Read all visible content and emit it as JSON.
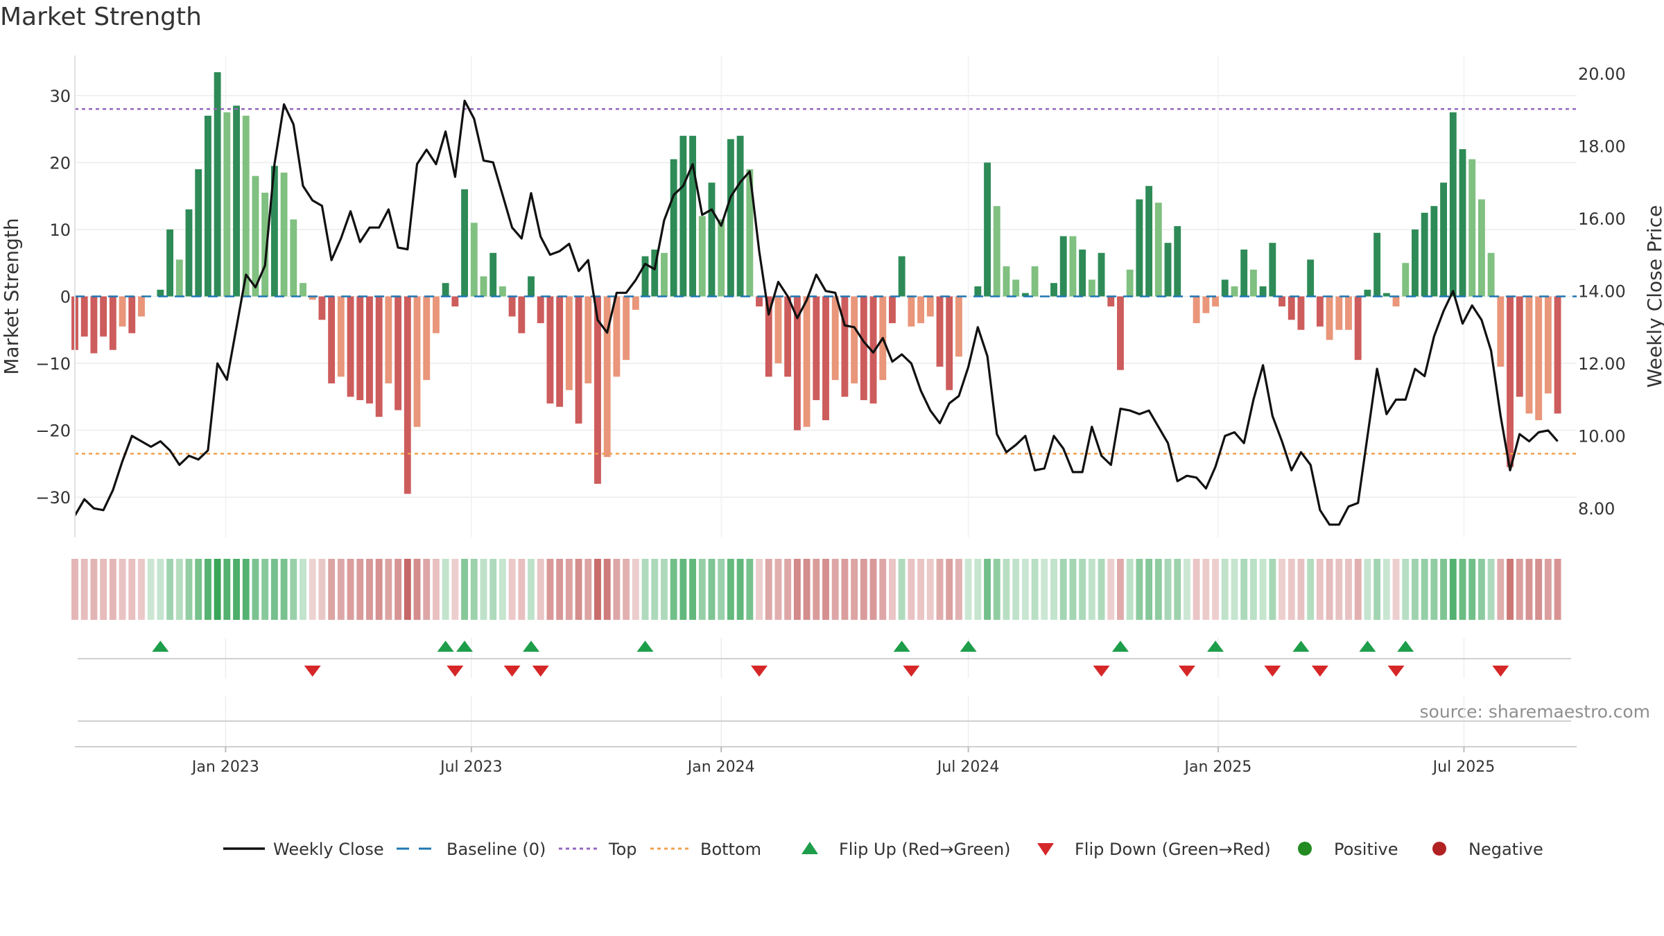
{
  "title": "Market Strength",
  "source": "source: sharemaestro.com",
  "colors": {
    "strong_green": "#2e8b57",
    "light_green": "#80c080",
    "strong_red": "#cd5c5c",
    "light_red": "#e9967a",
    "price_line": "#111111",
    "baseline": "#1f77b4",
    "top_line": "#9467bd",
    "bottom_line": "#f0a050",
    "flip_up": "#1e9e4a",
    "flip_down": "#d62728",
    "positive_dot": "#228b22",
    "negative_dot": "#b22222"
  },
  "chart_data": {
    "type": "bar+line",
    "title": "Market Strength",
    "ylabel": "Market Strength",
    "y2label": "Weekly Close Price",
    "ylim": [
      -36,
      36
    ],
    "y2lim": [
      7.2,
      20.5
    ],
    "yticks": [
      30,
      20,
      10,
      0,
      -10,
      -20,
      -30
    ],
    "ytick_labels": [
      "30",
      "20",
      "10",
      "0",
      "−10",
      "−20",
      "−30"
    ],
    "y2ticks": [
      20,
      18,
      16,
      14,
      12,
      10,
      8
    ],
    "y2tick_labels": [
      "20.00",
      "18.00",
      "16.00",
      "14.00",
      "12.00",
      "10.00",
      "8.00"
    ],
    "xlim": [
      "2022-09-12",
      "2025-09-22"
    ],
    "xticks": [
      "2023-01-01",
      "2023-07-01",
      "2024-01-01",
      "2024-07-01",
      "2025-01-01",
      "2025-07-01"
    ],
    "xtick_labels": [
      "Jan 2023",
      "Jul 2023",
      "Jan 2024",
      "Jul 2024",
      "Jan 2025",
      "Jul 2025"
    ],
    "start_date": "2022-09-12",
    "week_step_days": 7,
    "strength": [
      -8,
      -6,
      -8.5,
      -6,
      -8,
      -4.5,
      -5.5,
      -3,
      0,
      1,
      10,
      5.5,
      13,
      19,
      27,
      33.5,
      27.5,
      28.5,
      27,
      18,
      15.5,
      19.5,
      18.5,
      11.5,
      2,
      -0.5,
      -3.5,
      -13,
      -12,
      -15,
      -15.5,
      -16,
      -18,
      -13,
      -17,
      -29.5,
      -19.5,
      -12.5,
      -5.5,
      2,
      -1.5,
      16,
      11,
      3,
      6.5,
      1.5,
      -3,
      -5.5,
      3,
      -4,
      -16,
      -16.5,
      -14,
      -19,
      -13,
      -28,
      -24,
      -12,
      -9.5,
      -2,
      6,
      7,
      6.5,
      20.5,
      24,
      24,
      12,
      17,
      11.5,
      23.5,
      24,
      19,
      -1.5,
      -12,
      -10,
      -12,
      -20,
      -19.5,
      -15.5,
      -18.5,
      -12.5,
      -15,
      -13,
      -15.5,
      -16,
      -12.5,
      -4,
      6,
      -4.5,
      -4,
      -3,
      -10.5,
      -14,
      -9,
      0,
      1.5,
      20,
      13.5,
      4.5,
      2.5,
      0.5,
      4.5,
      0,
      2,
      9,
      9,
      7,
      2.5,
      6.5,
      -1.5,
      -11,
      4,
      14.5,
      16.5,
      14,
      8,
      10.5,
      0,
      -4,
      -2.5,
      -1.5,
      2.5,
      1.5,
      7,
      4,
      1.5,
      8,
      -1.5,
      -3.5,
      -5,
      5.5,
      -4.5,
      -6.5,
      -5,
      -5,
      -9.5,
      1,
      9.5,
      0.5,
      -1.5,
      5,
      10,
      12.5,
      13.5,
      17,
      27.5,
      22,
      20.5,
      14.5,
      6.5,
      -10.5,
      -25.5,
      -15,
      -17.5,
      -18.5,
      -14.5,
      -17.5
    ],
    "shade": [
      1,
      1,
      1,
      1,
      1,
      0,
      1,
      0,
      0,
      1,
      1,
      0,
      1,
      1,
      1,
      1,
      0,
      1,
      0,
      0,
      0,
      1,
      0,
      0,
      0,
      0,
      1,
      1,
      0,
      1,
      1,
      1,
      1,
      0,
      1,
      1,
      0,
      0,
      0,
      1,
      1,
      1,
      0,
      0,
      1,
      0,
      1,
      1,
      1,
      1,
      1,
      1,
      0,
      1,
      0,
      1,
      0,
      0,
      0,
      0,
      1,
      1,
      0,
      1,
      1,
      1,
      0,
      1,
      0,
      1,
      1,
      0,
      1,
      1,
      0,
      1,
      1,
      0,
      1,
      1,
      0,
      1,
      0,
      1,
      1,
      0,
      1,
      1,
      0,
      0,
      0,
      1,
      1,
      0,
      1,
      1,
      1,
      0,
      0,
      0,
      1,
      0,
      1,
      1,
      1,
      0,
      1,
      0,
      1,
      1,
      1,
      0,
      1,
      1,
      0,
      1,
      1,
      0,
      0,
      0,
      0,
      1,
      0,
      1,
      0,
      1,
      1,
      1,
      1,
      1,
      1,
      1,
      0,
      0,
      0,
      1,
      1,
      1,
      1,
      0,
      0,
      1,
      1,
      1,
      1,
      1,
      1,
      0,
      0,
      0,
      0,
      1,
      1,
      0,
      0,
      0,
      1,
      0
    ],
    "weekly_close": [
      7.8,
      8.25,
      8.0,
      7.95,
      8.5,
      9.3,
      10.0,
      9.85,
      9.7,
      9.85,
      9.6,
      9.2,
      9.45,
      9.35,
      9.6,
      12.0,
      11.55,
      13.0,
      14.45,
      14.1,
      14.7,
      17.5,
      19.15,
      18.6,
      16.9,
      16.5,
      16.35,
      14.85,
      15.45,
      16.2,
      15.35,
      15.75,
      15.75,
      16.25,
      15.2,
      15.15,
      17.5,
      17.9,
      17.5,
      18.4,
      17.15,
      19.25,
      18.75,
      17.6,
      17.55,
      16.65,
      15.75,
      15.45,
      16.7,
      15.5,
      15.0,
      15.1,
      15.3,
      14.55,
      14.85,
      13.2,
      12.85,
      13.95,
      13.95,
      14.3,
      14.75,
      14.6,
      15.95,
      16.65,
      16.9,
      17.5,
      16.1,
      16.25,
      15.8,
      16.6,
      17.0,
      17.3,
      15.1,
      13.35,
      14.25,
      13.85,
      13.25,
      13.75,
      14.45,
      14.0,
      13.95,
      13.05,
      13.0,
      12.6,
      12.3,
      12.7,
      12.05,
      12.25,
      12.0,
      11.25,
      10.7,
      10.35,
      10.9,
      11.1,
      11.9,
      13.0,
      12.2,
      10.05,
      9.55,
      9.75,
      10.0,
      9.05,
      9.1,
      10.0,
      9.65,
      9.0,
      9.0,
      10.25,
      9.45,
      9.2,
      10.75,
      10.7,
      10.6,
      10.7,
      10.25,
      9.8,
      8.75,
      8.9,
      8.85,
      8.55,
      9.15,
      10.0,
      10.1,
      9.8,
      11.0,
      11.95,
      10.55,
      9.85,
      9.05,
      9.55,
      9.2,
      7.95,
      7.55,
      7.55,
      8.05,
      8.15,
      10.0,
      11.85,
      10.6,
      11.0,
      11.0,
      11.85,
      11.65,
      12.75,
      13.45,
      14.0,
      13.1,
      13.6,
      13.2,
      12.35,
      10.55,
      9.05,
      10.05,
      9.85,
      10.1,
      10.15,
      9.85
    ],
    "baseline": 0,
    "top": 28,
    "bottom": -23.5,
    "flip_up_indices": [
      9,
      39,
      41,
      48,
      60,
      87,
      94,
      110,
      120,
      129,
      136,
      140
    ],
    "flip_down_indices": [
      25,
      40,
      46,
      49,
      72,
      88,
      108,
      117,
      126,
      131,
      139,
      150
    ],
    "legend": [
      "Weekly Close",
      "Baseline (0)",
      "Top",
      "Bottom",
      "Flip Up (Red→Green)",
      "Flip Down (Green→Red)",
      "Positive",
      "Negative"
    ]
  }
}
